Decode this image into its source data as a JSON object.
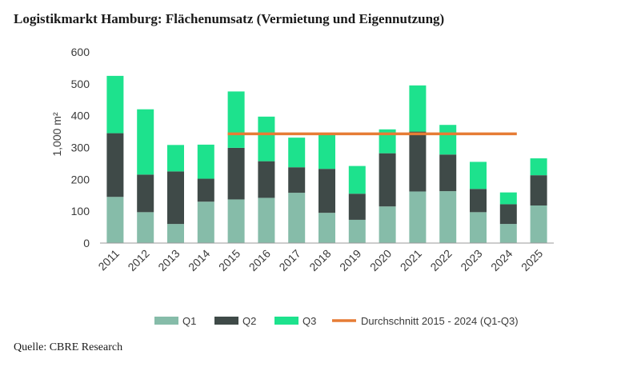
{
  "title": "Logistikmarkt Hamburg: Flächenumsatz (Vermietung und Eigennutzung)",
  "source": "Quelle: CBRE Research",
  "colors": {
    "q1": "#86bca9",
    "q2": "#3f4a48",
    "q3": "#1de28d",
    "avg": "#e67c35",
    "axis": "#9a9a9a"
  },
  "chart_data": {
    "type": "bar",
    "stacked": true,
    "categories": [
      "2011",
      "2012",
      "2013",
      "2014",
      "2015",
      "2016",
      "2017",
      "2018",
      "2019",
      "2020",
      "2021",
      "2022",
      "2023",
      "2024",
      "2025"
    ],
    "series": [
      {
        "name": "Q1",
        "values": [
          145,
          97,
          60,
          130,
          137,
          142,
          158,
          95,
          73,
          115,
          162,
          163,
          97,
          60,
          118
        ]
      },
      {
        "name": "Q2",
        "values": [
          200,
          118,
          165,
          72,
          162,
          115,
          80,
          138,
          82,
          167,
          188,
          115,
          73,
          62,
          95
        ]
      },
      {
        "name": "Q3",
        "values": [
          180,
          205,
          83,
          107,
          177,
          140,
          93,
          110,
          87,
          75,
          145,
          93,
          85,
          37,
          53
        ]
      }
    ],
    "average_line": {
      "name": "Durchschnitt 2015 - 2024 (Q1-Q3)",
      "value": 343,
      "from": "2015",
      "to": "2024"
    },
    "ylabel": "1,000 m²",
    "xlabel": "",
    "ylim": [
      0,
      600
    ],
    "yticks": [
      0,
      100,
      200,
      300,
      400,
      500,
      600
    ],
    "legend_position": "bottom"
  }
}
